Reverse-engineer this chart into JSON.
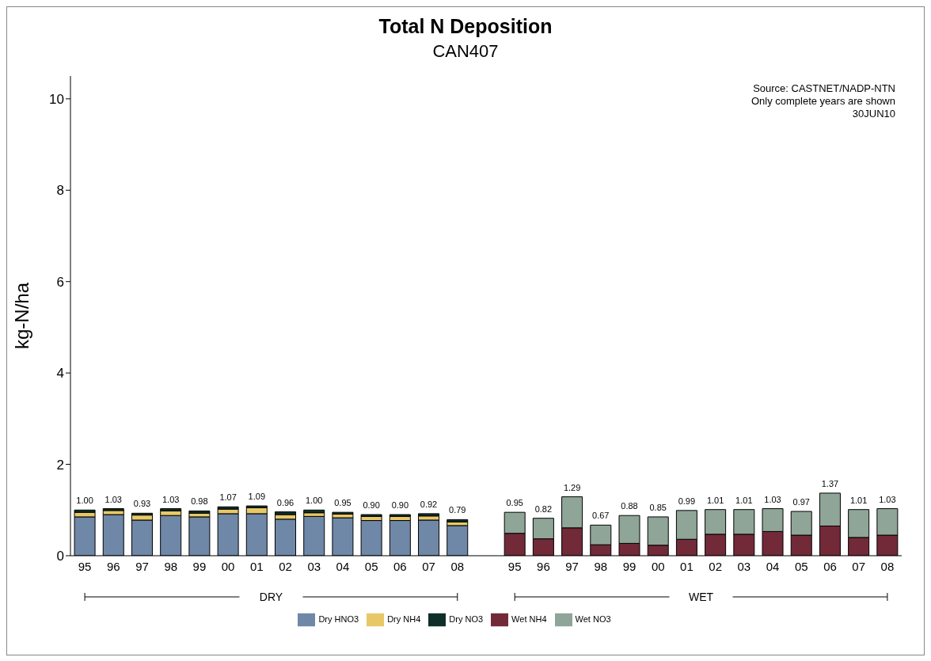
{
  "chart_data": {
    "type": "bar",
    "title": "Total N Deposition",
    "subtitle": "CAN407",
    "ylabel": "kg-N/ha",
    "categories": [
      "95",
      "96",
      "97",
      "98",
      "99",
      "00",
      "01",
      "02",
      "03",
      "04",
      "05",
      "06",
      "07",
      "08",
      null,
      "95",
      "96",
      "97",
      "98",
      "99",
      "00",
      "01",
      "02",
      "03",
      "04",
      "05",
      "06",
      "07",
      "08"
    ],
    "series": [
      {
        "name": "Dry HNO3",
        "color": "#6f88a8",
        "values": [
          0.85,
          0.9,
          0.78,
          0.88,
          0.85,
          0.92,
          0.92,
          0.8,
          0.86,
          0.83,
          0.77,
          0.77,
          0.78,
          0.66,
          null,
          null,
          null,
          null,
          null,
          null,
          null,
          null,
          null,
          null,
          null,
          null,
          null,
          null,
          null
        ]
      },
      {
        "name": "Dry NH4",
        "color": "#e8c866",
        "values": [
          0.1,
          0.09,
          0.11,
          0.1,
          0.08,
          0.1,
          0.13,
          0.1,
          0.08,
          0.08,
          0.09,
          0.09,
          0.09,
          0.08,
          null,
          null,
          null,
          null,
          null,
          null,
          null,
          null,
          null,
          null,
          null,
          null,
          null,
          null,
          null
        ]
      },
      {
        "name": "Dry NO3",
        "color": "#0f2f2a",
        "values": [
          0.05,
          0.04,
          0.04,
          0.05,
          0.05,
          0.05,
          0.04,
          0.06,
          0.06,
          0.04,
          0.04,
          0.04,
          0.05,
          0.05,
          null,
          null,
          null,
          null,
          null,
          null,
          null,
          null,
          null,
          null,
          null,
          null,
          null,
          null,
          null
        ]
      },
      {
        "name": "Wet NH4",
        "color": "#722a38",
        "values": [
          null,
          null,
          null,
          null,
          null,
          null,
          null,
          null,
          null,
          null,
          null,
          null,
          null,
          null,
          null,
          0.49,
          0.37,
          0.61,
          0.24,
          0.27,
          0.23,
          0.36,
          0.47,
          0.47,
          0.53,
          0.45,
          0.65,
          0.4,
          0.45
        ]
      },
      {
        "name": "Wet NO3",
        "color": "#8fa597",
        "values": [
          null,
          null,
          null,
          null,
          null,
          null,
          null,
          null,
          null,
          null,
          null,
          null,
          null,
          null,
          null,
          0.46,
          0.45,
          0.68,
          0.43,
          0.61,
          0.62,
          0.63,
          0.54,
          0.54,
          0.5,
          0.52,
          0.72,
          0.61,
          0.58
        ]
      }
    ],
    "stacked": true,
    "totals": [
      "1.00",
      "1.03",
      "0.93",
      "1.03",
      "0.98",
      "1.07",
      "1.09",
      "0.96",
      "1.00",
      "0.95",
      "0.90",
      "0.90",
      "0.92",
      "0.79",
      null,
      "0.95",
      "0.82",
      "1.29",
      "0.67",
      "0.88",
      "0.85",
      "0.99",
      "1.01",
      "1.01",
      "1.03",
      "0.97",
      "1.37",
      "1.01",
      "1.03"
    ],
    "ylim": [
      0,
      10.5
    ],
    "yticks": [
      0,
      2,
      4,
      6,
      8,
      10
    ],
    "grid": false,
    "legend": "bottom",
    "annotations": [
      "Source: CASTNET/NADP-NTN",
      "Only complete years are shown",
      "30JUN10",
      "DRY",
      "WET"
    ]
  }
}
